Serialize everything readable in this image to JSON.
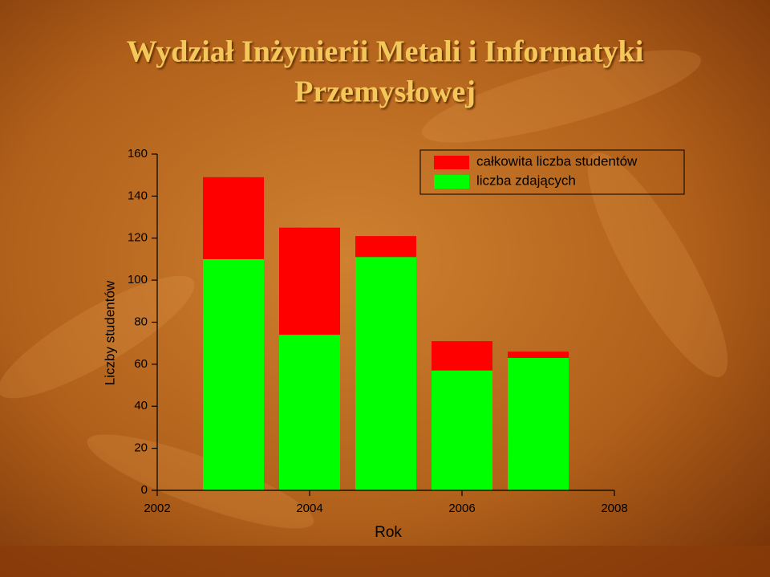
{
  "chart_data": {
    "type": "bar",
    "title": [
      "Wydział Inżynierii Metali i Informatyki",
      "Przemysłowej"
    ],
    "x_label": "Rok",
    "y_label": "Liczby studentów",
    "x": [
      2003,
      2004,
      2005,
      2006,
      2007
    ],
    "series": [
      {
        "name": "całkowita liczba studentów",
        "color": "#ff0000",
        "values": [
          149,
          125,
          121,
          71,
          66
        ]
      },
      {
        "name": "liczba zdających",
        "color": "#00ff00",
        "values": [
          110,
          74,
          111,
          57,
          63
        ]
      }
    ],
    "xlim": [
      2002,
      2008
    ],
    "xticks": [
      2002,
      2004,
      2006,
      2008
    ],
    "ylim": [
      0,
      160
    ],
    "yticks": [
      0,
      20,
      40,
      60,
      80,
      100,
      120,
      140,
      160
    ],
    "legend": "upper right"
  }
}
